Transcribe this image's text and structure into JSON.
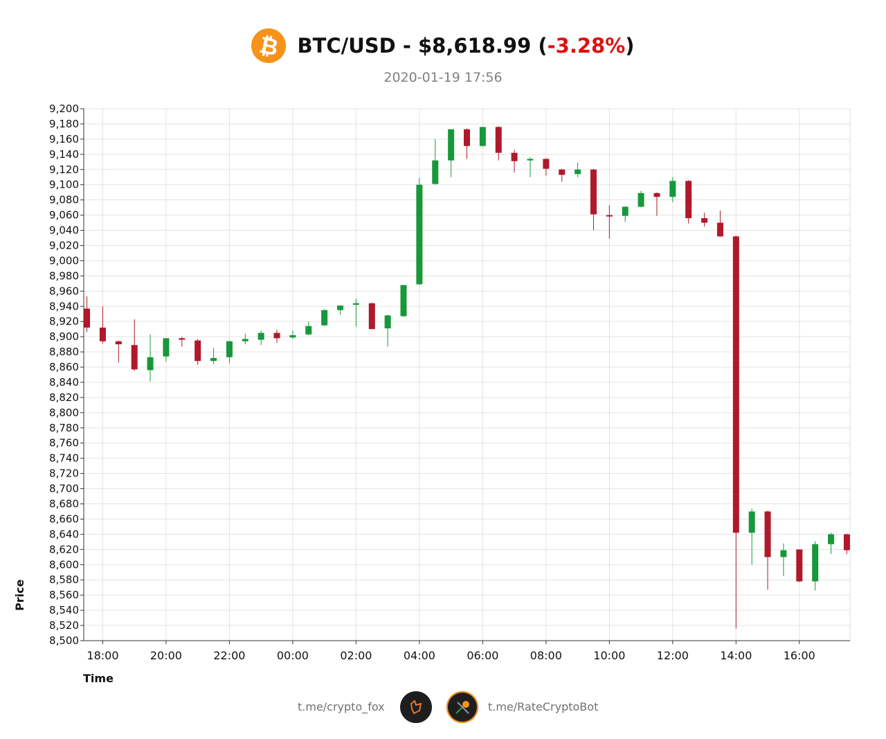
{
  "header": {
    "pair": "BTC/USD",
    "title_prefix": "BTC/USD - $8,618.99 (",
    "change": "-3.28%",
    "title_suffix": ")",
    "timestamp": "2020-01-19 17:56",
    "logo_icon": "bitcoin-icon",
    "logo_color": "#F7931A",
    "change_color": "#e01010"
  },
  "footer": {
    "left_link": "t.me/crypto_fox",
    "right_link": "t.me/RateCryptoBot",
    "left_icon": "fox-avatar-icon",
    "right_icon": "bitcoin-bot-avatar-icon"
  },
  "chart_data": {
    "type": "candlestick",
    "title": "BTC/USD - $8,618.99 (-3.28%)",
    "subtitle": "2020-01-19 17:56",
    "xlabel": "Time",
    "ylabel": "Price",
    "ylim": [
      8500,
      9200
    ],
    "y_ticks": [
      "8,500",
      "8,520",
      "8,540",
      "8,560",
      "8,580",
      "8,600",
      "8,620",
      "8,640",
      "8,660",
      "8,680",
      "8,700",
      "8,720",
      "8,740",
      "8,760",
      "8,780",
      "8,800",
      "8,820",
      "8,840",
      "8,860",
      "8,880",
      "8,900",
      "8,920",
      "8,940",
      "8,960",
      "8,980",
      "9,000",
      "9,020",
      "9,040",
      "9,060",
      "9,080",
      "9,100",
      "9,120",
      "9,140",
      "9,160",
      "9,180",
      "9,200"
    ],
    "x_ticks": [
      "18:00",
      "20:00",
      "22:00",
      "00:00",
      "02:00",
      "04:00",
      "06:00",
      "08:00",
      "10:00",
      "12:00",
      "14:00",
      "16:00"
    ],
    "x_range_hours": [
      -0.6,
      23.6
    ],
    "up_color": "#17983a",
    "down_color": "#b0182b",
    "grid": true,
    "candles": [
      {
        "t": -0.5,
        "o": 8937,
        "h": 8953,
        "l": 8906,
        "c": 8912
      },
      {
        "t": 0.0,
        "o": 8912,
        "h": 8940,
        "l": 8891,
        "c": 8894
      },
      {
        "t": 0.5,
        "o": 8894,
        "h": 8895,
        "l": 8866,
        "c": 8890
      },
      {
        "t": 1.0,
        "o": 8889,
        "h": 8923,
        "l": 8855,
        "c": 8857
      },
      {
        "t": 1.5,
        "o": 8856,
        "h": 8903,
        "l": 8841,
        "c": 8873
      },
      {
        "t": 2.0,
        "o": 8874,
        "h": 8898,
        "l": 8867,
        "c": 8898
      },
      {
        "t": 2.5,
        "o": 8898,
        "h": 8900,
        "l": 8887,
        "c": 8896
      },
      {
        "t": 3.0,
        "o": 8895,
        "h": 8897,
        "l": 8863,
        "c": 8868
      },
      {
        "t": 3.5,
        "o": 8868,
        "h": 8885,
        "l": 8864,
        "c": 8872
      },
      {
        "t": 4.0,
        "o": 8873,
        "h": 8895,
        "l": 8865,
        "c": 8894
      },
      {
        "t": 4.5,
        "o": 8894,
        "h": 8904,
        "l": 8890,
        "c": 8897
      },
      {
        "t": 5.0,
        "o": 8896,
        "h": 8908,
        "l": 8889,
        "c": 8905
      },
      {
        "t": 5.5,
        "o": 8905,
        "h": 8909,
        "l": 8892,
        "c": 8898
      },
      {
        "t": 6.0,
        "o": 8899,
        "h": 8908,
        "l": 8897,
        "c": 8902
      },
      {
        "t": 6.5,
        "o": 8903,
        "h": 8920,
        "l": 8902,
        "c": 8914
      },
      {
        "t": 7.0,
        "o": 8915,
        "h": 8936,
        "l": 8914,
        "c": 8935
      },
      {
        "t": 7.5,
        "o": 8935,
        "h": 8941,
        "l": 8929,
        "c": 8941
      },
      {
        "t": 8.0,
        "o": 8942,
        "h": 8950,
        "l": 8913,
        "c": 8944
      },
      {
        "t": 8.5,
        "o": 8944,
        "h": 8945,
        "l": 8910,
        "c": 8910
      },
      {
        "t": 9.0,
        "o": 8911,
        "h": 8929,
        "l": 8887,
        "c": 8928
      },
      {
        "t": 9.5,
        "o": 8927,
        "h": 8968,
        "l": 8926,
        "c": 8968
      },
      {
        "t": 10.0,
        "o": 8969,
        "h": 9109,
        "l": 8968,
        "c": 9100
      },
      {
        "t": 10.5,
        "o": 9101,
        "h": 9160,
        "l": 9100,
        "c": 9132
      },
      {
        "t": 11.0,
        "o": 9132,
        "h": 9173,
        "l": 9110,
        "c": 9173
      },
      {
        "t": 11.5,
        "o": 9173,
        "h": 9174,
        "l": 9134,
        "c": 9151
      },
      {
        "t": 12.0,
        "o": 9151,
        "h": 9176,
        "l": 9150,
        "c": 9176
      },
      {
        "t": 12.5,
        "o": 9176,
        "h": 9177,
        "l": 9132,
        "c": 9142
      },
      {
        "t": 13.0,
        "o": 9142,
        "h": 9146,
        "l": 9116,
        "c": 9131
      },
      {
        "t": 13.5,
        "o": 9132,
        "h": 9136,
        "l": 9110,
        "c": 9134
      },
      {
        "t": 14.0,
        "o": 9134,
        "h": 9135,
        "l": 9112,
        "c": 9121
      },
      {
        "t": 14.5,
        "o": 9120,
        "h": 9121,
        "l": 9104,
        "c": 9113
      },
      {
        "t": 15.0,
        "o": 9114,
        "h": 9129,
        "l": 9110,
        "c": 9120
      },
      {
        "t": 15.5,
        "o": 9120,
        "h": 9121,
        "l": 9040,
        "c": 9061
      },
      {
        "t": 16.0,
        "o": 9060,
        "h": 9073,
        "l": 9029,
        "c": 9059
      },
      {
        "t": 16.5,
        "o": 9059,
        "h": 9072,
        "l": 9051,
        "c": 9071
      },
      {
        "t": 17.0,
        "o": 9071,
        "h": 9092,
        "l": 9070,
        "c": 9089
      },
      {
        "t": 17.5,
        "o": 9089,
        "h": 9090,
        "l": 9059,
        "c": 9084
      },
      {
        "t": 18.0,
        "o": 9084,
        "h": 9110,
        "l": 9077,
        "c": 9105
      },
      {
        "t": 18.5,
        "o": 9105,
        "h": 9106,
        "l": 9049,
        "c": 9056
      },
      {
        "t": 19.0,
        "o": 9056,
        "h": 9063,
        "l": 9045,
        "c": 9050
      },
      {
        "t": 19.5,
        "o": 9050,
        "h": 9066,
        "l": 9031,
        "c": 9032
      },
      {
        "t": 20.0,
        "o": 9032,
        "h": 9033,
        "l": 8516,
        "c": 8642
      },
      {
        "t": 20.5,
        "o": 8642,
        "h": 8674,
        "l": 8600,
        "c": 8670
      },
      {
        "t": 21.0,
        "o": 8670,
        "h": 8671,
        "l": 8567,
        "c": 8610
      },
      {
        "t": 21.5,
        "o": 8610,
        "h": 8628,
        "l": 8585,
        "c": 8619
      },
      {
        "t": 22.0,
        "o": 8620,
        "h": 8620,
        "l": 8577,
        "c": 8578
      },
      {
        "t": 22.5,
        "o": 8578,
        "h": 8631,
        "l": 8566,
        "c": 8627
      },
      {
        "t": 23.0,
        "o": 8627,
        "h": 8642,
        "l": 8614,
        "c": 8640
      },
      {
        "t": 23.5,
        "o": 8640,
        "h": 8641,
        "l": 8614,
        "c": 8619
      }
    ]
  }
}
